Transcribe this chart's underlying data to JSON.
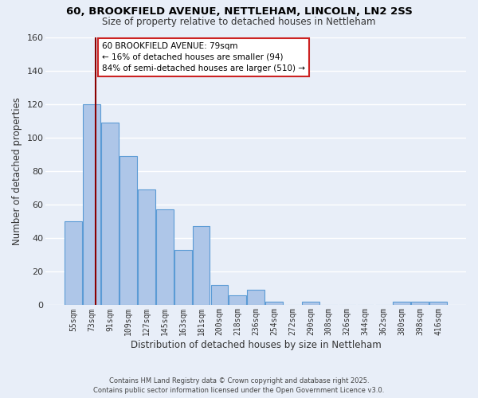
{
  "title": "60, BROOKFIELD AVENUE, NETTLEHAM, LINCOLN, LN2 2SS",
  "subtitle": "Size of property relative to detached houses in Nettleham",
  "xlabel": "Distribution of detached houses by size in Nettleham",
  "ylabel": "Number of detached properties",
  "bar_labels": [
    "55sqm",
    "73sqm",
    "91sqm",
    "109sqm",
    "127sqm",
    "145sqm",
    "163sqm",
    "181sqm",
    "200sqm",
    "218sqm",
    "236sqm",
    "254sqm",
    "272sqm",
    "290sqm",
    "308sqm",
    "326sqm",
    "344sqm",
    "362sqm",
    "380sqm",
    "398sqm",
    "416sqm"
  ],
  "bar_values": [
    50,
    120,
    109,
    89,
    69,
    57,
    33,
    47,
    12,
    6,
    9,
    2,
    0,
    2,
    0,
    0,
    0,
    0,
    2,
    2,
    2
  ],
  "bar_color": "#aec6e8",
  "bar_edge_color": "#5b9bd5",
  "background_color": "#e8eef8",
  "grid_color": "#ffffff",
  "ylim": [
    0,
    160
  ],
  "yticks": [
    0,
    20,
    40,
    60,
    80,
    100,
    120,
    140,
    160
  ],
  "annotation_title": "60 BROOKFIELD AVENUE: 79sqm",
  "annotation_line1": "← 16% of detached houses are smaller (94)",
  "annotation_line2": "84% of semi-detached houses are larger (510) →",
  "ref_line_x": 1.2,
  "ref_line_color": "#8b0000",
  "footer_line1": "Contains HM Land Registry data © Crown copyright and database right 2025.",
  "footer_line2": "Contains public sector information licensed under the Open Government Licence v3.0."
}
